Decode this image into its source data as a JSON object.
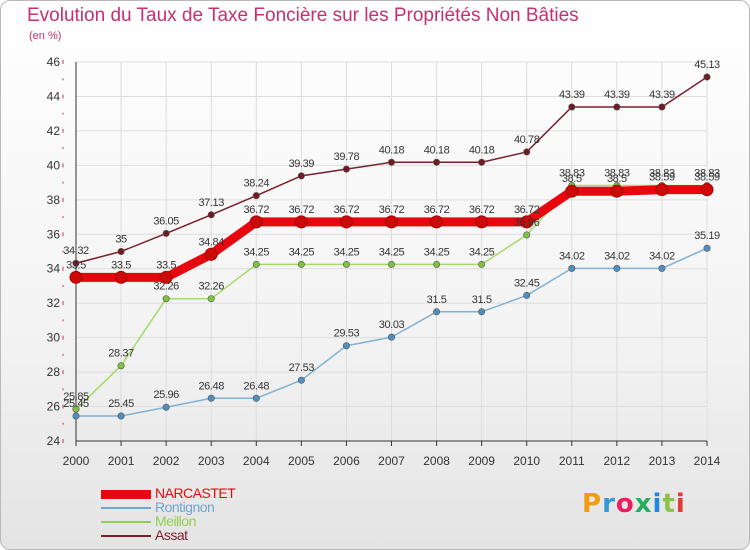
{
  "title": "Evolution du Taux de Taxe Foncière sur les Propriétés Non Bâties",
  "unit_label": "(en %)",
  "logo_text": "Proxiti",
  "logo_colors": [
    "#f39c12",
    "#3498db",
    "#e91e63",
    "#27ae60",
    "#1e88e5",
    "#8bc34a",
    "#e53935"
  ],
  "colors": {
    "title": "#c72f6f",
    "axis": "#333333",
    "grid": "#dddddd",
    "tick_marks": "#c72f6f"
  },
  "chart_data": {
    "type": "line",
    "title": "Evolution du Taux de Taxe Foncière sur les Propriétés Non Bâties",
    "xlabel": "",
    "ylabel": "(en %)",
    "ylim": [
      24,
      46
    ],
    "yticks": [
      24,
      26,
      28,
      30,
      32,
      34,
      36,
      38,
      40,
      42,
      44,
      46
    ],
    "grid": true,
    "legend_position": "bottom-left",
    "categories": [
      "2000",
      "2001",
      "2002",
      "2003",
      "2004",
      "2005",
      "2006",
      "2007",
      "2008",
      "2009",
      "2010",
      "2011",
      "2012",
      "2013",
      "2014"
    ],
    "series": [
      {
        "name": "Assat",
        "color": "#7a1f2b",
        "marker_color": "#6e1b22",
        "values": [
          34.32,
          35,
          36.05,
          37.13,
          38.24,
          39.39,
          39.78,
          40.18,
          40.18,
          40.18,
          40.78,
          43.39,
          43.39,
          43.39,
          45.13
        ],
        "labels": [
          "34.32",
          "35",
          "36.05",
          "37.13",
          "38.24",
          "39.39",
          "39.78",
          "40.18",
          "40.18",
          "40.18",
          "40.78",
          "43.39",
          "43.39",
          "43.39",
          "45.13"
        ]
      },
      {
        "name": "Meillon",
        "color": "#a6d96a",
        "marker_color": "#7fc241",
        "values": [
          25.85,
          28.37,
          32.26,
          32.26,
          34.25,
          34.25,
          34.25,
          34.25,
          34.25,
          34.25,
          35.96,
          38.83,
          38.83,
          38.83,
          38.83
        ],
        "labels": [
          "25.85",
          "28.37",
          "32.26",
          "32.26",
          "34.25",
          "34.25",
          "34.25",
          "34.25",
          "34.25",
          "34.25",
          "35.96",
          "38.83",
          "38.83",
          "38.83",
          "38.83"
        ]
      },
      {
        "name": "Rontignon",
        "color": "#80b1d3",
        "marker_color": "#4f8fc0",
        "values": [
          25.45,
          25.45,
          25.96,
          26.48,
          26.48,
          27.53,
          29.53,
          30.03,
          31.5,
          31.5,
          32.45,
          34.02,
          34.02,
          34.02,
          35.19
        ],
        "labels": [
          "25.45",
          "25.45",
          "25.96",
          "26.48",
          "26.48",
          "27.53",
          "29.53",
          "30.03",
          "31.5",
          "31.5",
          "32.45",
          "34.02",
          "34.02",
          "34.02",
          "35.19"
        ]
      },
      {
        "name": "NARCASTET",
        "color": "#e8070e",
        "marker_color": "#cc0a0a",
        "values": [
          33.5,
          33.5,
          33.5,
          34.84,
          36.72,
          36.72,
          36.72,
          36.72,
          36.72,
          36.72,
          36.72,
          38.5,
          38.5,
          38.59,
          38.59
        ],
        "labels": [
          "33.5",
          "33.5",
          "33.5",
          "34.84",
          "36.72",
          "36.72",
          "36.72",
          "36.72",
          "36.72",
          "36.72",
          "36.72",
          "38.5",
          "38.5",
          "38.59",
          "38.59"
        ]
      }
    ],
    "legend": [
      {
        "name": "NARCASTET",
        "color": "#e8070e"
      },
      {
        "name": "Rontignon",
        "color": "#6fa6d0"
      },
      {
        "name": "Meillon",
        "color": "#8fd14f"
      },
      {
        "name": "Assat",
        "color": "#7a1f2b"
      }
    ]
  }
}
